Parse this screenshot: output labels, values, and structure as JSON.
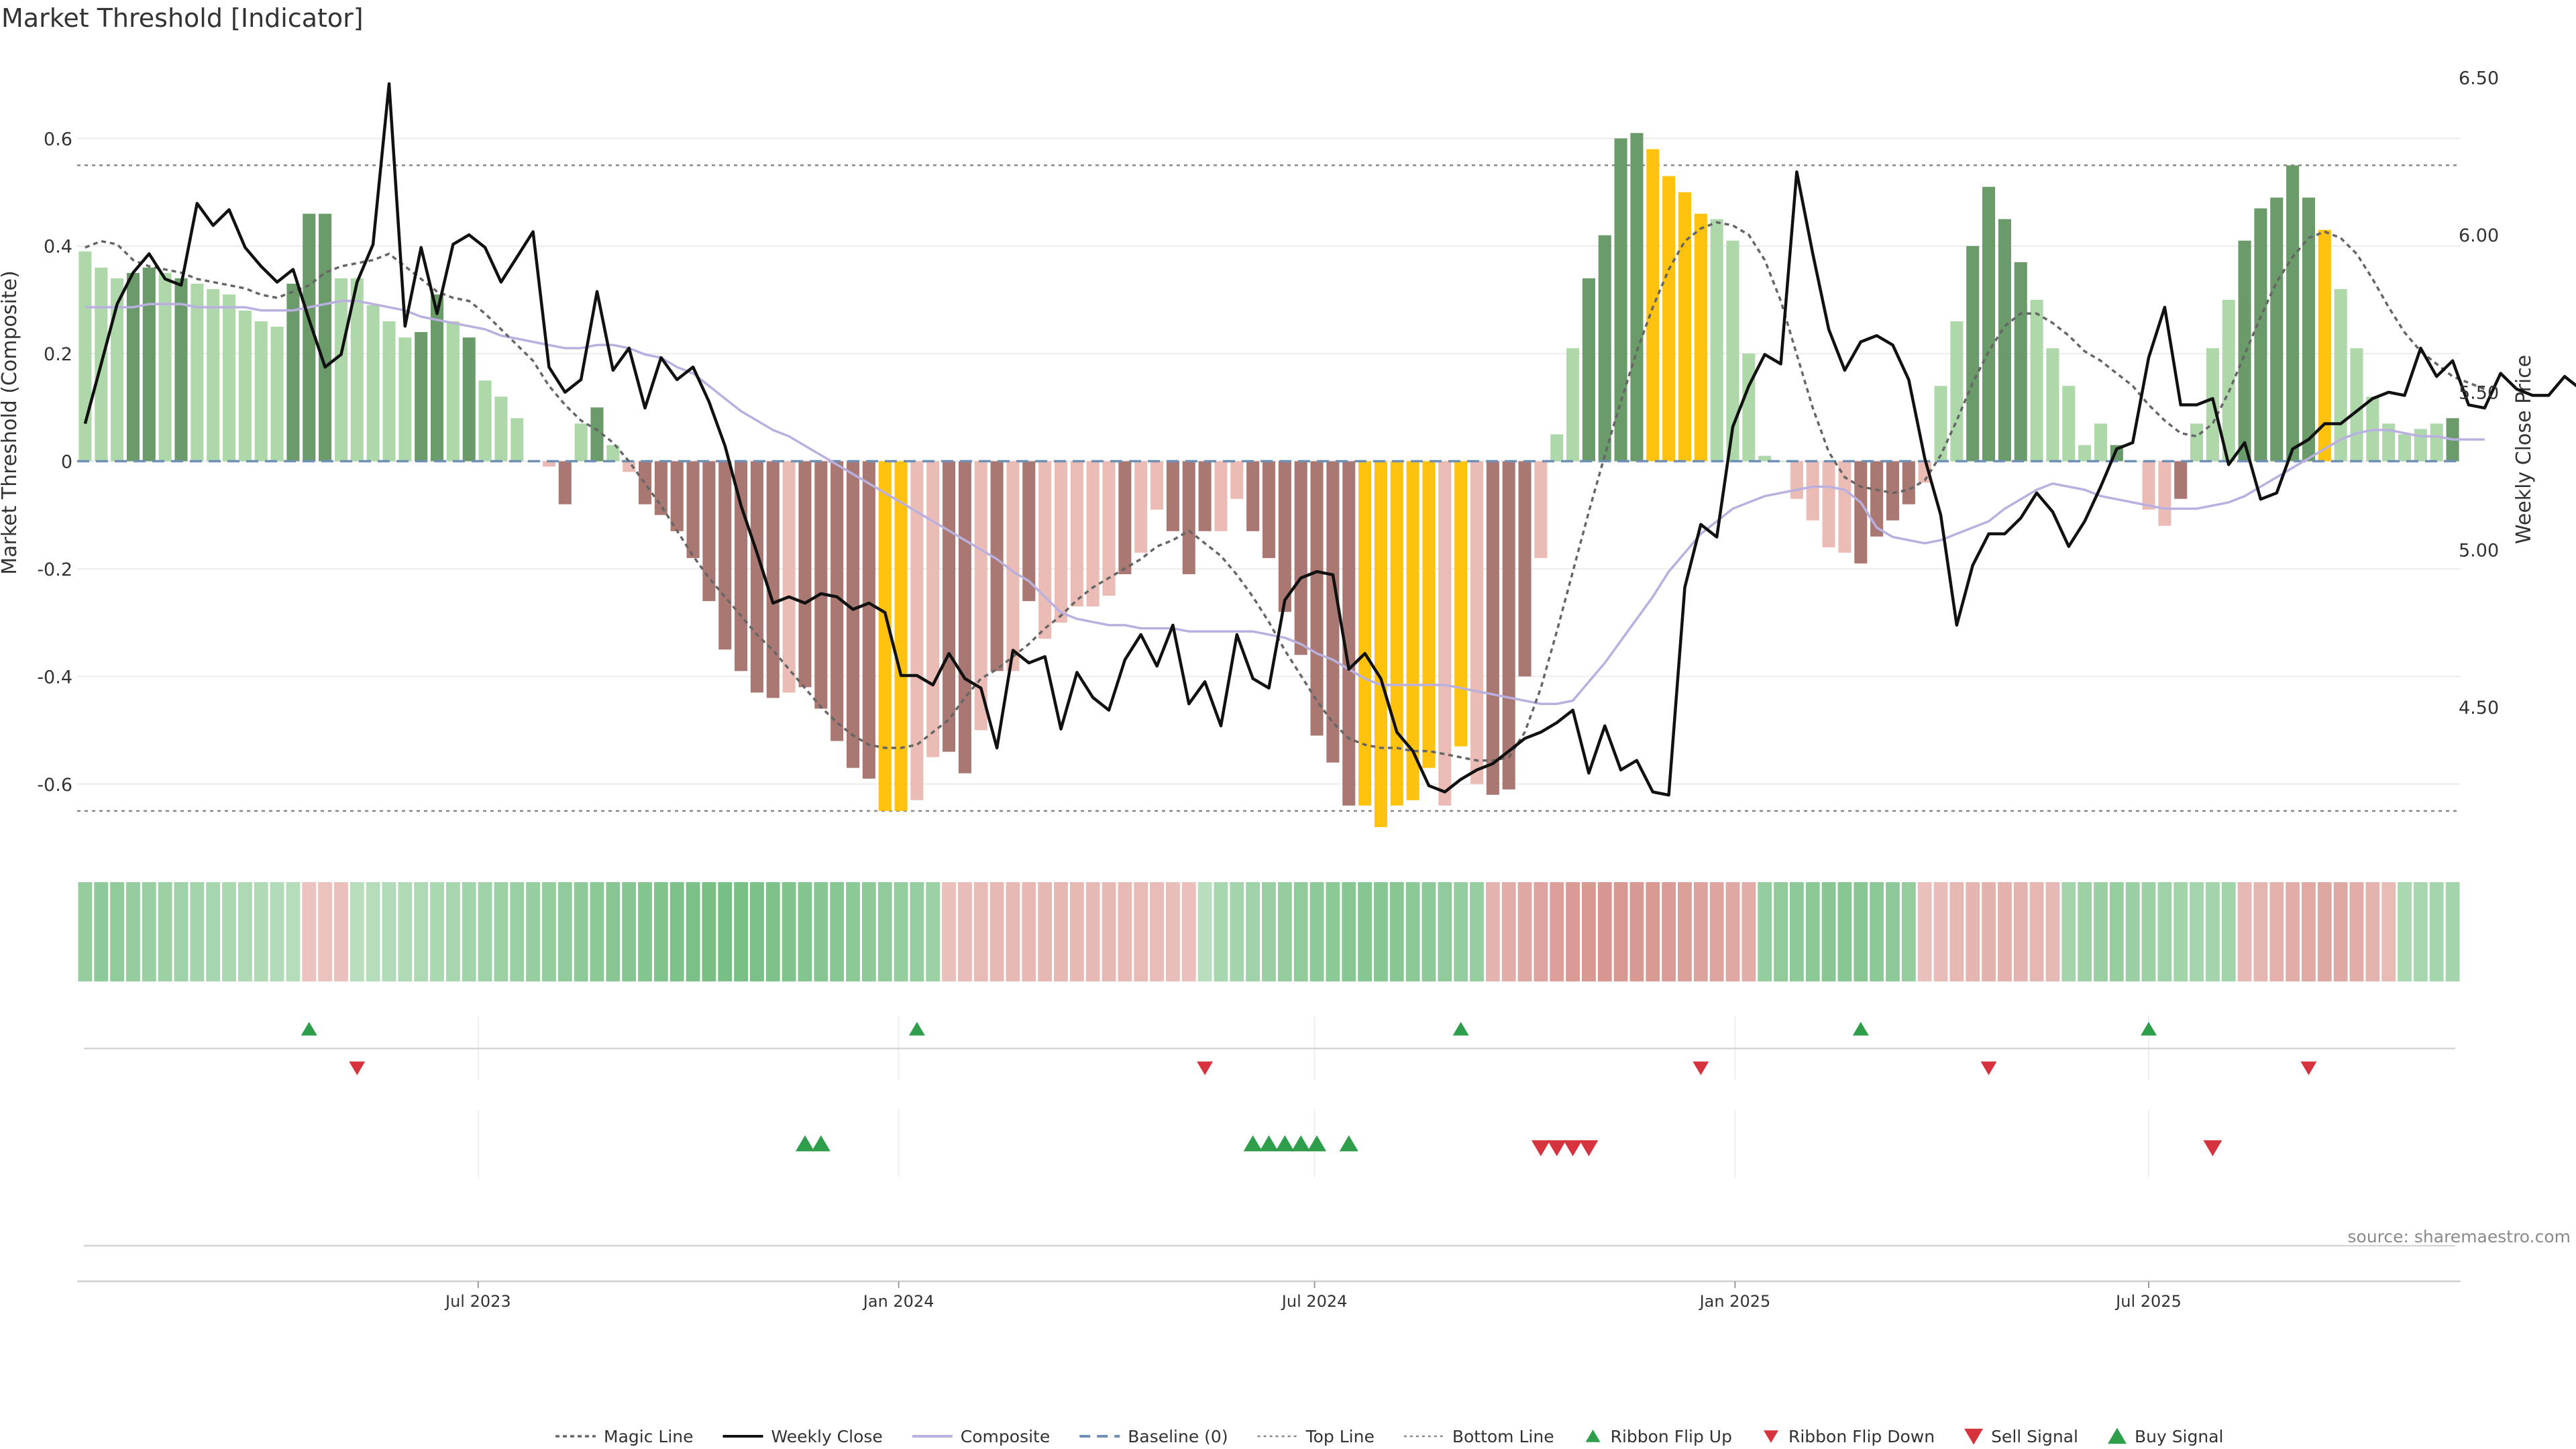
{
  "title": "Market Threshold [Indicator]",
  "source": "source: sharemaestro.com",
  "colors": {
    "bar_pos_strong": "#6b9a6b",
    "bar_pos_weak": "#aed8aa",
    "bar_neg_strong": "#a97872",
    "bar_neg_weak": "#ebbcb6",
    "extreme": "#ffc20e",
    "weekly_close": "#111111",
    "composite": "#b9b0e0",
    "magic_line": "#666666",
    "baseline": "#6f8fb5",
    "threshold_line": "#888888",
    "buy": "#2e9e4a",
    "sell": "#d7333f"
  },
  "chart_data": {
    "type": "bar",
    "xlabel": "",
    "ylabel": "Market Threshold (Composite)",
    "ylabel_right": "Weekly Close Price",
    "start_date": "2023-01-10",
    "ylim": [
      -0.72,
      0.76
    ],
    "ylim_right": [
      4.05,
      6.58
    ],
    "yticks": [
      "0.6",
      "0.4",
      "0.2",
      "0",
      "-0.2",
      "-0.4",
      "-0.6"
    ],
    "yticks_right": [
      "6.50",
      "6.00",
      "5.50",
      "5.00",
      "4.50"
    ],
    "xticks": [
      "Jul 2023",
      "Jan 2024",
      "Jul 2024",
      "Jan 2025",
      "Jul 2025"
    ],
    "top_line": 0.55,
    "bottom_line": -0.65,
    "legend_position": "bottom",
    "composite": [
      0.39,
      0.36,
      0.34,
      0.35,
      0.36,
      0.35,
      0.34,
      0.33,
      0.32,
      0.31,
      0.28,
      0.26,
      0.25,
      0.33,
      0.46,
      0.46,
      0.34,
      0.34,
      0.29,
      0.26,
      0.23,
      0.24,
      0.31,
      0.26,
      0.23,
      0.15,
      0.12,
      0.08,
      0.0,
      -0.01,
      -0.08,
      0.07,
      0.1,
      0.03,
      -0.02,
      -0.08,
      -0.1,
      -0.13,
      -0.18,
      -0.26,
      -0.35,
      -0.39,
      -0.43,
      -0.44,
      -0.43,
      -0.42,
      -0.46,
      -0.52,
      -0.57,
      -0.59,
      -0.65,
      -0.65,
      -0.63,
      -0.55,
      -0.54,
      -0.58,
      -0.5,
      -0.39,
      -0.39,
      -0.26,
      -0.33,
      -0.3,
      -0.27,
      -0.27,
      -0.25,
      -0.21,
      -0.17,
      -0.09,
      -0.13,
      -0.21,
      -0.13,
      -0.13,
      -0.07,
      -0.13,
      -0.18,
      -0.28,
      -0.36,
      -0.51,
      -0.56,
      -0.64,
      -0.64,
      -0.68,
      -0.64,
      -0.63,
      -0.57,
      -0.64,
      -0.53,
      -0.6,
      -0.62,
      -0.61,
      -0.4,
      -0.18,
      0.05,
      0.21,
      0.34,
      0.42,
      0.6,
      0.61,
      0.58,
      0.53,
      0.5,
      0.46,
      0.45,
      0.41,
      0.2,
      0.01,
      0.0,
      -0.07,
      -0.11,
      -0.16,
      -0.17,
      -0.19,
      -0.14,
      -0.11,
      -0.08,
      -0.04,
      0.14,
      0.26,
      0.4,
      0.51,
      0.45,
      0.37,
      0.3,
      0.21,
      0.14,
      0.03,
      0.07,
      0.03,
      0.0,
      -0.09,
      -0.12,
      -0.07,
      0.07,
      0.21,
      0.3,
      0.41,
      0.47,
      0.49,
      0.55,
      0.49,
      0.43,
      0.32,
      0.21,
      0.12,
      0.07,
      0.05,
      0.06,
      0.07,
      0.08
    ],
    "bar_shade": [
      "weak",
      "weak",
      "weak",
      "strong",
      "strong",
      "weak",
      "strong",
      "weak",
      "weak",
      "weak",
      "weak",
      "weak",
      "weak",
      "strong",
      "strong",
      "strong",
      "weak",
      "weak",
      "weak",
      "weak",
      "weak",
      "strong",
      "strong",
      "weak",
      "strong",
      "weak",
      "weak",
      "weak",
      "weak",
      "weak",
      "strong",
      "weak",
      "strong",
      "weak",
      "weak",
      "strong",
      "strong",
      "strong",
      "strong",
      "strong",
      "strong",
      "strong",
      "strong",
      "strong",
      "weak",
      "strong",
      "strong",
      "strong",
      "strong",
      "strong",
      "extreme",
      "extreme",
      "weak",
      "weak",
      "strong",
      "strong",
      "weak",
      "strong",
      "weak",
      "strong",
      "weak",
      "weak",
      "weak",
      "weak",
      "weak",
      "strong",
      "weak",
      "weak",
      "strong",
      "strong",
      "strong",
      "weak",
      "weak",
      "strong",
      "strong",
      "strong",
      "strong",
      "strong",
      "strong",
      "strong",
      "extreme",
      "extreme",
      "extreme",
      "extreme",
      "extreme",
      "weak",
      "extreme",
      "weak",
      "strong",
      "strong",
      "strong",
      "weak",
      "weak",
      "weak",
      "strong",
      "strong",
      "strong",
      "strong",
      "extreme",
      "extreme",
      "extreme",
      "extreme",
      "weak",
      "weak",
      "weak",
      "weak",
      "weak",
      "weak",
      "weak",
      "weak",
      "weak",
      "strong",
      "strong",
      "strong",
      "strong",
      "weak",
      "weak",
      "weak",
      "strong",
      "strong",
      "strong",
      "strong",
      "weak",
      "weak",
      "weak",
      "weak",
      "weak",
      "strong",
      "weak",
      "weak",
      "weak",
      "strong",
      "weak",
      "weak",
      "weak",
      "strong",
      "strong",
      "strong",
      "strong",
      "strong",
      "extreme",
      "weak",
      "weak",
      "weak",
      "weak",
      "weak",
      "weak",
      "weak",
      "strong",
      "strong"
    ],
    "weekly_close": [
      5.4,
      5.59,
      5.78,
      5.88,
      5.94,
      5.86,
      5.84,
      6.1,
      6.03,
      6.08,
      5.96,
      5.9,
      5.85,
      5.89,
      5.73,
      5.58,
      5.62,
      5.85,
      5.97,
      6.48,
      5.71,
      5.96,
      5.75,
      5.97,
      6.0,
      5.96,
      5.85,
      5.93,
      6.01,
      5.58,
      5.5,
      5.54,
      5.82,
      5.57,
      5.64,
      5.45,
      5.61,
      5.54,
      5.58,
      5.47,
      5.33,
      5.14,
      4.99,
      4.83,
      4.85,
      4.83,
      4.86,
      4.85,
      4.81,
      4.83,
      4.8,
      4.6,
      4.6,
      4.57,
      4.67,
      4.59,
      4.56,
      4.37,
      4.68,
      4.64,
      4.66,
      4.43,
      4.61,
      4.53,
      4.49,
      4.65,
      4.73,
      4.63,
      4.76,
      4.51,
      4.58,
      4.44,
      4.73,
      4.59,
      4.56,
      4.84,
      4.91,
      4.93,
      4.92,
      4.62,
      4.67,
      4.59,
      4.42,
      4.36,
      4.25,
      4.23,
      4.27,
      4.3,
      4.32,
      4.36,
      4.4,
      4.42,
      4.45,
      4.49,
      4.29,
      4.44,
      4.3,
      4.33,
      4.23,
      4.22,
      4.88,
      5.08,
      5.04,
      5.39,
      5.52,
      5.62,
      5.59,
      6.2,
      5.94,
      5.7,
      5.57,
      5.66,
      5.68,
      5.65,
      5.54,
      5.29,
      5.11,
      4.76,
      4.95,
      5.05,
      5.05,
      5.1,
      5.18,
      5.12,
      5.01,
      5.09,
      5.2,
      5.32,
      5.34,
      5.61,
      5.77,
      5.46,
      5.46,
      5.48,
      5.27,
      5.34,
      5.16,
      5.18,
      5.32,
      5.35,
      5.4,
      5.4,
      5.44,
      5.48,
      5.5,
      5.49,
      5.64,
      5.55,
      5.6,
      5.46,
      5.45,
      5.56,
      5.51,
      5.49,
      5.49,
      5.55,
      5.51
    ],
    "magic_line": [
      5.96,
      5.98,
      5.97,
      5.92,
      5.9,
      5.89,
      5.88,
      5.86,
      5.85,
      5.84,
      5.83,
      5.81,
      5.8,
      5.82,
      5.84,
      5.88,
      5.9,
      5.91,
      5.92,
      5.94,
      5.9,
      5.86,
      5.82,
      5.8,
      5.79,
      5.75,
      5.7,
      5.65,
      5.6,
      5.52,
      5.46,
      5.41,
      5.38,
      5.34,
      5.28,
      5.21,
      5.14,
      5.06,
      4.98,
      4.91,
      4.85,
      4.79,
      4.73,
      4.68,
      4.62,
      4.56,
      4.5,
      4.45,
      4.41,
      4.38,
      4.37,
      4.37,
      4.38,
      4.42,
      4.46,
      4.53,
      4.59,
      4.62,
      4.66,
      4.7,
      4.75,
      4.79,
      4.84,
      4.88,
      4.91,
      4.94,
      4.97,
      5.01,
      5.03,
      5.06,
      5.02,
      4.98,
      4.92,
      4.85,
      4.77,
      4.68,
      4.6,
      4.52,
      4.45,
      4.4,
      4.38,
      4.37,
      4.37,
      4.36,
      4.36,
      4.35,
      4.34,
      4.33,
      4.33,
      4.34,
      4.42,
      4.56,
      4.74,
      4.93,
      5.12,
      5.3,
      5.47,
      5.63,
      5.77,
      5.89,
      5.98,
      6.02,
      6.04,
      6.03,
      6.0,
      5.92,
      5.79,
      5.62,
      5.45,
      5.31,
      5.23,
      5.2,
      5.19,
      5.18,
      5.19,
      5.22,
      5.3,
      5.41,
      5.53,
      5.63,
      5.71,
      5.75,
      5.75,
      5.72,
      5.68,
      5.63,
      5.6,
      5.56,
      5.52,
      5.46,
      5.41,
      5.37,
      5.36,
      5.4,
      5.5,
      5.62,
      5.74,
      5.85,
      5.93,
      5.99,
      6.01,
      5.99,
      5.94,
      5.86,
      5.77,
      5.69,
      5.63,
      5.59,
      5.55,
      5.53,
      5.51
    ],
    "composite_line": [
      5.77,
      5.77,
      5.77,
      5.77,
      5.78,
      5.78,
      5.78,
      5.77,
      5.77,
      5.77,
      5.77,
      5.76,
      5.76,
      5.76,
      5.77,
      5.78,
      5.79,
      5.79,
      5.78,
      5.77,
      5.76,
      5.74,
      5.73,
      5.72,
      5.71,
      5.7,
      5.68,
      5.67,
      5.66,
      5.65,
      5.64,
      5.64,
      5.65,
      5.65,
      5.64,
      5.62,
      5.61,
      5.58,
      5.56,
      5.52,
      5.48,
      5.44,
      5.41,
      5.38,
      5.36,
      5.33,
      5.3,
      5.27,
      5.24,
      5.21,
      5.18,
      5.15,
      5.12,
      5.09,
      5.06,
      5.03,
      5.0,
      4.97,
      4.93,
      4.9,
      4.85,
      4.8,
      4.78,
      4.77,
      4.76,
      4.76,
      4.75,
      4.75,
      4.75,
      4.74,
      4.74,
      4.74,
      4.74,
      4.74,
      4.73,
      4.72,
      4.7,
      4.67,
      4.65,
      4.62,
      4.59,
      4.57,
      4.57,
      4.57,
      4.57,
      4.57,
      4.56,
      4.55,
      4.54,
      4.53,
      4.52,
      4.51,
      4.51,
      4.52,
      4.58,
      4.64,
      4.71,
      4.78,
      4.85,
      4.93,
      4.99,
      5.05,
      5.09,
      5.13,
      5.15,
      5.17,
      5.18,
      5.19,
      5.2,
      5.2,
      5.19,
      5.15,
      5.07,
      5.04,
      5.03,
      5.02,
      5.03,
      5.05,
      5.07,
      5.09,
      5.13,
      5.16,
      5.19,
      5.21,
      5.2,
      5.19,
      5.17,
      5.16,
      5.15,
      5.14,
      5.13,
      5.13,
      5.13,
      5.14,
      5.15,
      5.17,
      5.2,
      5.23,
      5.26,
      5.29,
      5.32,
      5.35,
      5.37,
      5.38,
      5.38,
      5.37,
      5.36,
      5.36,
      5.35,
      5.35,
      5.35
    ],
    "ribbon": [
      0.45,
      0.5,
      0.48,
      0.45,
      0.42,
      0.4,
      0.38,
      0.35,
      0.33,
      0.3,
      0.28,
      0.26,
      0.24,
      0.22,
      -0.3,
      -0.32,
      -0.35,
      0.2,
      0.22,
      0.24,
      0.26,
      0.28,
      0.3,
      0.33,
      0.36,
      0.38,
      0.4,
      0.42,
      0.44,
      0.46,
      0.48,
      0.5,
      0.52,
      0.54,
      0.56,
      0.58,
      0.6,
      0.62,
      0.64,
      0.66,
      0.66,
      0.65,
      0.64,
      0.62,
      0.6,
      0.58,
      0.56,
      0.55,
      0.52,
      0.5,
      0.48,
      0.46,
      0.44,
      0.4,
      -0.35,
      -0.4,
      -0.42,
      -0.45,
      -0.46,
      -0.47,
      -0.48,
      -0.48,
      -0.47,
      -0.46,
      -0.45,
      -0.44,
      -0.42,
      -0.4,
      -0.38,
      -0.36,
      0.2,
      0.32,
      0.35,
      0.38,
      0.42,
      0.45,
      0.48,
      0.5,
      0.52,
      0.55,
      0.56,
      0.55,
      0.54,
      0.52,
      0.5,
      0.48,
      0.46,
      0.44,
      -0.55,
      -0.65,
      -0.72,
      -0.8,
      -0.86,
      -0.92,
      -0.96,
      -1.0,
      -0.98,
      -0.96,
      -0.94,
      -0.9,
      -0.86,
      -0.82,
      -0.78,
      -0.72,
      -0.65,
      0.45,
      0.48,
      0.5,
      0.52,
      0.54,
      0.55,
      0.54,
      0.52,
      0.5,
      0.45,
      -0.35,
      -0.4,
      -0.48,
      -0.52,
      -0.56,
      -0.58,
      -0.55,
      -0.5,
      -0.45,
      0.35,
      0.4,
      0.42,
      0.44,
      0.42,
      0.4,
      0.38,
      0.36,
      0.34,
      0.35,
      0.36,
      -0.45,
      -0.52,
      -0.58,
      -0.64,
      -0.7,
      -0.74,
      -0.72,
      -0.65,
      -0.55,
      -0.42,
      0.3,
      0.32,
      0.34,
      0.35
    ],
    "ribbon_flip_up": [
      14,
      52,
      86,
      111,
      129
    ],
    "ribbon_flip_down": [
      17,
      70,
      101,
      119,
      139
    ],
    "buy_signals": [
      45,
      46,
      73,
      74,
      75,
      76,
      77,
      79
    ],
    "sell_signals": [
      91,
      92,
      93,
      94,
      133
    ],
    "legend": [
      {
        "label": "Magic Line",
        "marker": "dotted-line"
      },
      {
        "label": "Weekly Close",
        "marker": "solid-line"
      },
      {
        "label": "Composite",
        "marker": "composite-line"
      },
      {
        "label": "Baseline (0)",
        "marker": "dashed-line"
      },
      {
        "label": "Top Line",
        "marker": "fine-dotted-line"
      },
      {
        "label": "Bottom Line",
        "marker": "fine-dotted-line"
      },
      {
        "label": "Ribbon Flip Up",
        "marker": "triangle-up-small"
      },
      {
        "label": "Ribbon Flip Down",
        "marker": "triangle-down-small"
      },
      {
        "label": "Sell Signal",
        "marker": "triangle-down"
      },
      {
        "label": "Buy Signal",
        "marker": "triangle-up"
      }
    ]
  }
}
